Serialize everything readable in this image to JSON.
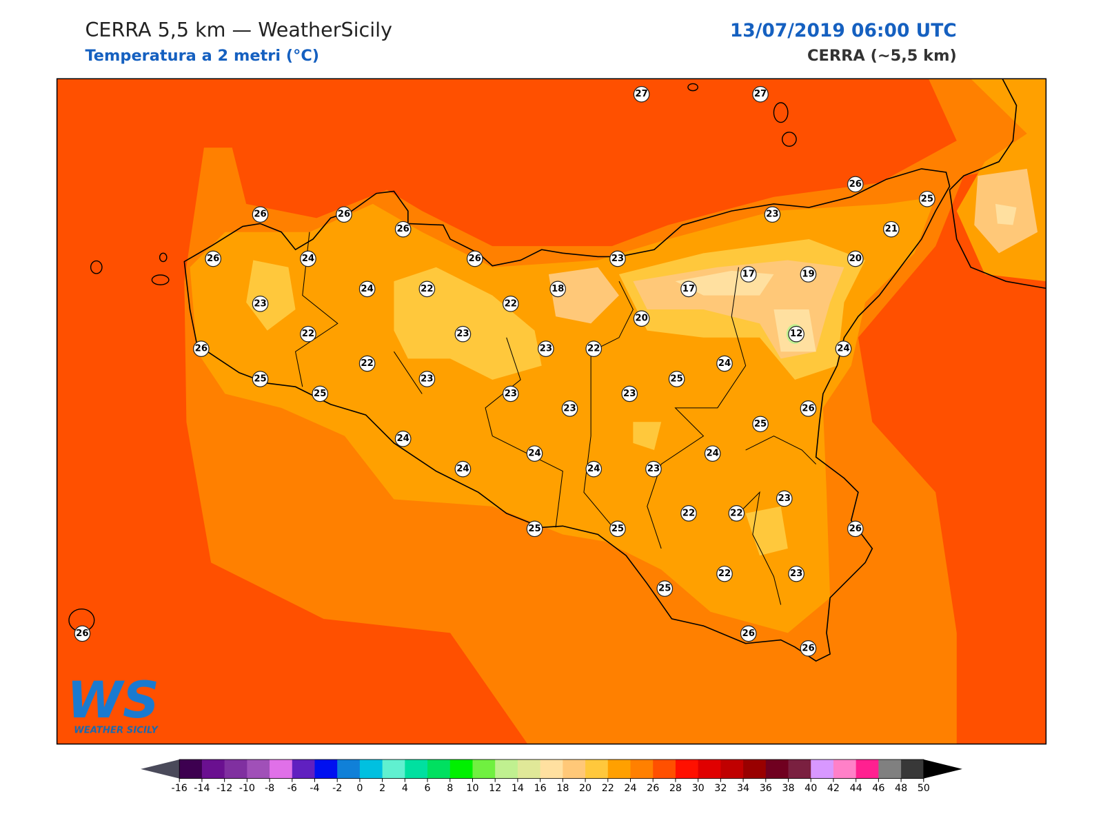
{
  "header": {
    "title": "CERRA 5,5 km — WeatherSicily",
    "subtitle": "Temperatura a 2 metri (°C)",
    "datetime": "13/07/2019 06:00 UTC",
    "model": "CERRA (~5,5 km)"
  },
  "logo": {
    "mark": "WS",
    "text": "WEATHER SICILY"
  },
  "station_values": [
    27,
    27,
    26,
    25,
    23,
    21,
    26,
    26,
    26,
    26,
    23,
    20,
    26,
    24,
    17,
    19,
    24,
    22,
    18,
    17,
    23,
    22,
    20,
    22,
    23,
    12,
    26,
    23,
    22,
    24,
    22,
    24,
    25,
    23,
    25,
    25,
    23,
    23,
    23,
    26,
    25,
    24,
    24,
    24,
    24,
    24,
    23,
    23,
    22,
    22,
    25,
    25,
    26,
    22,
    23,
    25,
    26,
    26,
    26
  ],
  "colorbar": {
    "ticks": [
      -16,
      -14,
      -12,
      -10,
      -8,
      -6,
      -4,
      -2,
      0,
      2,
      4,
      6,
      8,
      10,
      12,
      14,
      16,
      18,
      20,
      22,
      24,
      26,
      28,
      30,
      32,
      34,
      36,
      38,
      40,
      42,
      44,
      46,
      48,
      50
    ],
    "colors": [
      "#3d0050",
      "#6a1090",
      "#8030a0",
      "#a050b8",
      "#e070e8",
      "#6020c0",
      "#0010f0",
      "#1080d8",
      "#00c0e0",
      "#60f0d0",
      "#00e0a0",
      "#00e060",
      "#00f000",
      "#70f040",
      "#c0f090",
      "#e0e898",
      "#ffe0a0",
      "#ffc878",
      "#ffc83c",
      "#ffa000",
      "#ff8000",
      "#ff5000",
      "#ff1000",
      "#e00000",
      "#c00000",
      "#990000",
      "#700020",
      "#7a2040",
      "#d898ff",
      "#ff80c8",
      "#ff2090",
      "#808080",
      "#383838"
    ],
    "under_color": "#4a4a5a",
    "over_color": "#000000"
  }
}
